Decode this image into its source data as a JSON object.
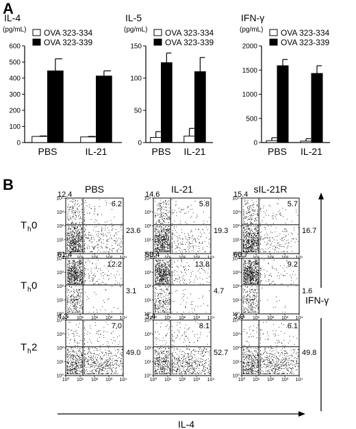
{
  "panel_a_letter": "A",
  "panel_b_letter": "B",
  "legend_labels": [
    "OVA 323-334",
    "OVA 323-339"
  ],
  "chart_data": [
    {
      "type": "bar",
      "title": "IL-4",
      "ylabel": "(pg/mL)",
      "categories": [
        "PBS",
        "IL-21"
      ],
      "ylim": [
        0,
        600
      ],
      "yticks": [
        "0",
        "100",
        "200",
        "300",
        "400",
        "500",
        "600"
      ],
      "series": [
        {
          "name": "OVA 323-334",
          "color": "#ffffff",
          "values": [
            38,
            35
          ],
          "errors": [
            3,
            3
          ]
        },
        {
          "name": "OVA 323-339",
          "color": "#000000",
          "values": [
            445,
            413
          ],
          "errors": [
            75,
            32
          ]
        }
      ]
    },
    {
      "type": "bar",
      "title": "IL-5",
      "ylabel": "(pg/mL)",
      "categories": [
        "PBS",
        "IL-21"
      ],
      "ylim": [
        0,
        150
      ],
      "yticks": [
        "0",
        "50",
        "100",
        "150"
      ],
      "series": [
        {
          "name": "OVA 323-334",
          "color": "#ffffff",
          "values": [
            8,
            10
          ],
          "errors": [
            9,
            12
          ]
        },
        {
          "name": "OVA 323-339",
          "color": "#000000",
          "values": [
            124,
            110
          ],
          "errors": [
            15,
            22
          ]
        }
      ]
    },
    {
      "type": "bar",
      "title": "IFN-γ",
      "ylabel": "(pg/mL)",
      "categories": [
        "PBS",
        "IL-21"
      ],
      "ylim": [
        0,
        2000
      ],
      "yticks": [
        "0",
        "500",
        "1000",
        "1500",
        "2000"
      ],
      "series": [
        {
          "name": "OVA 323-334",
          "color": "#ffffff",
          "values": [
            40,
            30
          ],
          "errors": [
            60,
            50
          ]
        },
        {
          "name": "OVA 323-339",
          "color": "#000000",
          "values": [
            1590,
            1430
          ],
          "errors": [
            130,
            160
          ]
        }
      ]
    },
    {
      "type": "scatter",
      "columns": [
        "PBS",
        "IL-21",
        "sIL-21R"
      ],
      "rows": [
        {
          "label": "T",
          "sub": "h",
          "suffix": "0"
        },
        {
          "label": "T",
          "sub": "h",
          "suffix": "0"
        },
        {
          "label": "T",
          "sub": "h",
          "suffix": "2"
        }
      ],
      "axis_ticks": [
        "10⁰",
        "10¹",
        "10²",
        "10³",
        "10⁴"
      ],
      "xlabel": "IL-4",
      "ylabel": "IFN-γ",
      "quadrant_percentages": [
        [
          {
            "ul": "12.4",
            "ur": "6.2",
            "lr": "23.6"
          },
          {
            "ul": "14.6",
            "ur": "5.8",
            "lr": "19.3"
          },
          {
            "ul": "15.4",
            "ur": "5.7",
            "lr": "16.7"
          }
        ],
        [
          {
            "ul": "61.4",
            "ur": "12.2",
            "lr": "3.1"
          },
          {
            "ul": "58.4",
            "ur": "13.8",
            "lr": "4.7"
          },
          {
            "ul": "66.7",
            "ur": "9.2",
            "lr": "1.6"
          }
        ],
        [
          {
            "ul": "4.3",
            "ur": "7.0",
            "lr": "49.0"
          },
          {
            "ul": "3.4",
            "ur": "8.1",
            "lr": "52.7"
          },
          {
            "ul": "3.0",
            "ur": "6.1",
            "lr": "49.8"
          }
        ]
      ]
    }
  ]
}
